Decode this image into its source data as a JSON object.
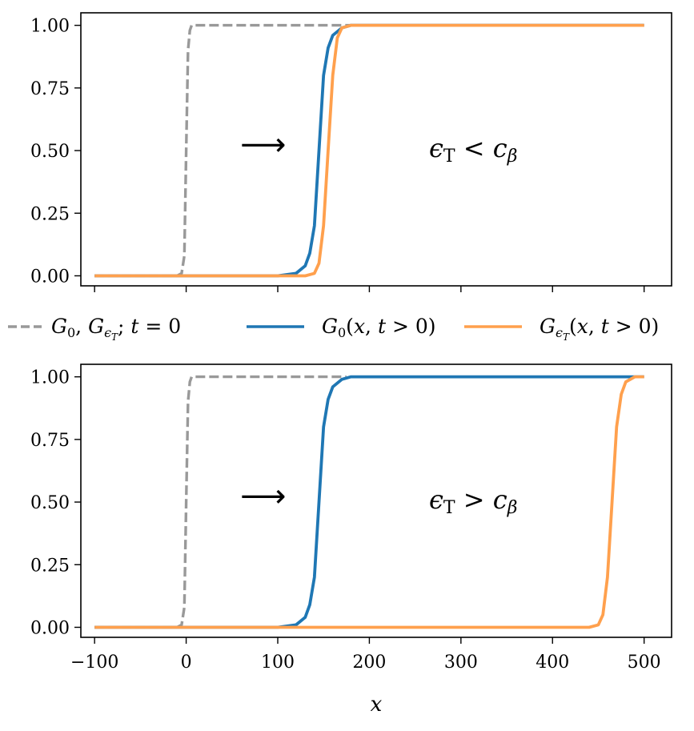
{
  "chart_data": [
    {
      "type": "line",
      "title": "",
      "xlabel": "",
      "ylabel": "",
      "xlim": [
        -115,
        530
      ],
      "ylim": [
        -0.04,
        1.05
      ],
      "xticks": [
        -100,
        0,
        100,
        200,
        300,
        400,
        500
      ],
      "yticks": [
        "0.00",
        "0.25",
        "0.50",
        "0.75",
        "1.00"
      ],
      "show_xticklabels": false,
      "annotation": {
        "arrow": "⟶",
        "condition_lhs": "ϵ",
        "condition_sub": "T",
        "condition_op": "<",
        "condition_rhs": "c",
        "condition_rhs_sub": "β"
      },
      "series": [
        {
          "key": "initial",
          "x": [
            -100,
            -10,
            -5,
            -2,
            0,
            2,
            4,
            6,
            10,
            180
          ],
          "y": [
            0,
            0,
            0.01,
            0.08,
            0.5,
            0.9,
            0.98,
            1,
            1,
            1
          ],
          "color": "#999999",
          "dash": "dashed"
        },
        {
          "key": "g0",
          "x": [
            -100,
            100,
            120,
            130,
            135,
            140,
            145,
            150,
            155,
            160,
            170,
            180,
            500
          ],
          "y": [
            0,
            0,
            0.01,
            0.04,
            0.09,
            0.2,
            0.5,
            0.8,
            0.91,
            0.96,
            0.99,
            1,
            1
          ],
          "color": "#1f77b4",
          "dash": "solid"
        },
        {
          "key": "geps",
          "x": [
            -100,
            130,
            140,
            145,
            150,
            155,
            160,
            165,
            170,
            180,
            500
          ],
          "y": [
            0,
            0,
            0.01,
            0.05,
            0.2,
            0.5,
            0.8,
            0.95,
            0.99,
            1,
            1
          ],
          "color": "#ffa04d",
          "dash": "solid"
        }
      ]
    },
    {
      "type": "line",
      "title": "",
      "xlabel": "x",
      "ylabel": "",
      "xlim": [
        -115,
        530
      ],
      "ylim": [
        -0.04,
        1.05
      ],
      "xticks": [
        -100,
        0,
        100,
        200,
        300,
        400,
        500
      ],
      "xticklabels": [
        "−100",
        "0",
        "100",
        "200",
        "300",
        "400",
        "500"
      ],
      "yticks": [
        "0.00",
        "0.25",
        "0.50",
        "0.75",
        "1.00"
      ],
      "show_xticklabels": true,
      "annotation": {
        "arrow": "⟶",
        "condition_lhs": "ϵ",
        "condition_sub": "T",
        "condition_op": ">",
        "condition_rhs": "c",
        "condition_rhs_sub": "β"
      },
      "series": [
        {
          "key": "initial",
          "x": [
            -100,
            -10,
            -5,
            -2,
            0,
            2,
            4,
            6,
            10,
            175
          ],
          "y": [
            0,
            0,
            0.01,
            0.08,
            0.5,
            0.9,
            0.98,
            1,
            1,
            1
          ],
          "color": "#999999",
          "dash": "dashed"
        },
        {
          "key": "g0",
          "x": [
            -100,
            100,
            120,
            130,
            135,
            140,
            145,
            150,
            155,
            160,
            170,
            180,
            500
          ],
          "y": [
            0,
            0,
            0.01,
            0.04,
            0.09,
            0.2,
            0.5,
            0.8,
            0.91,
            0.96,
            0.99,
            1,
            1
          ],
          "color": "#1f77b4",
          "dash": "solid"
        },
        {
          "key": "geps",
          "x": [
            -100,
            440,
            450,
            455,
            460,
            465,
            470,
            475,
            480,
            490,
            500
          ],
          "y": [
            0,
            0,
            0.01,
            0.05,
            0.2,
            0.5,
            0.8,
            0.93,
            0.98,
            1,
            1
          ],
          "color": "#ffa04d",
          "dash": "solid"
        }
      ]
    }
  ],
  "legend": {
    "placement": "between panels",
    "entries": [
      {
        "key": "initial",
        "color": "#999999",
        "dash": "dashed",
        "label": "G₀, G_ϵT; t = 0"
      },
      {
        "key": "g0",
        "color": "#1f77b4",
        "dash": "solid",
        "label": "G₀(x, t > 0)"
      },
      {
        "key": "geps",
        "color": "#ffa04d",
        "dash": "solid",
        "label": "G_ϵT(x, t > 0)"
      }
    ]
  }
}
